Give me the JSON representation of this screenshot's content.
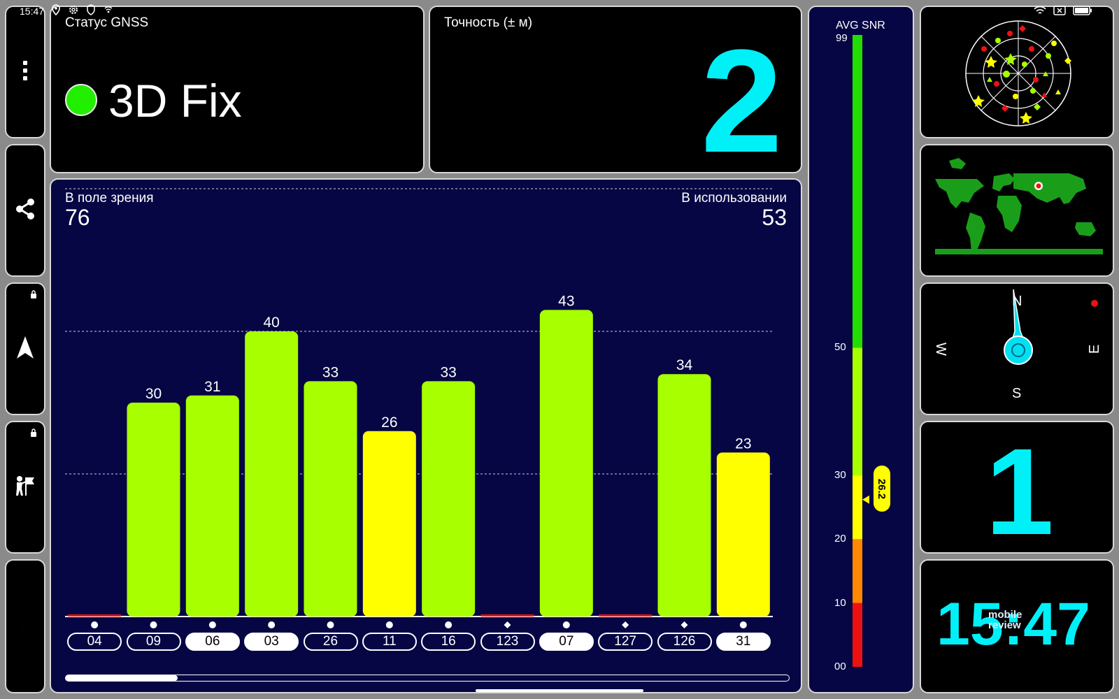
{
  "status_bar": {
    "time": "15:47"
  },
  "sidebar": [
    {
      "name": "menu-button",
      "icon": "more-vertical-icon"
    },
    {
      "name": "share-button",
      "icon": "share-icon"
    },
    {
      "name": "navigate-button",
      "icon": "navigation-arrow-icon",
      "locked": true
    },
    {
      "name": "map-mode-button",
      "icon": "person-flag-icon",
      "locked": true
    },
    {
      "name": "night-mode-button",
      "icon": "moon-icon"
    }
  ],
  "gnss_status": {
    "title": "Статус GNSS",
    "fix": "3D Fix",
    "fix_color": "#22ee00"
  },
  "accuracy": {
    "title": "Точность (± м)",
    "value": "2"
  },
  "satellites": {
    "in_view_label": "В поле зрения",
    "in_view": "76",
    "in_use_label": "В использовании",
    "in_use": "53"
  },
  "chart_data": {
    "type": "bar",
    "categories": [
      "04",
      "09",
      "06",
      "03",
      "26",
      "11",
      "16",
      "123",
      "07",
      "127",
      "126",
      "31"
    ],
    "values": [
      0,
      30,
      31,
      40,
      33,
      26,
      33,
      0,
      43,
      0,
      34,
      23
    ],
    "value_labels": [
      "",
      "30",
      "31",
      "40",
      "33",
      "26",
      "33",
      "",
      "43",
      "",
      "34",
      "23"
    ],
    "marker_shape": [
      "circle",
      "circle",
      "circle",
      "circle",
      "circle",
      "circle",
      "circle",
      "diamond",
      "circle",
      "diamond",
      "diamond",
      "circle"
    ],
    "used_in_fix": [
      false,
      false,
      true,
      true,
      false,
      false,
      false,
      false,
      true,
      false,
      false,
      true
    ],
    "ylim": [
      0,
      60
    ],
    "gridlines": [
      20,
      40,
      60
    ],
    "colors": {
      "strong": "#a8ff00",
      "medium": "#ffff00",
      "none": "#ee1111"
    }
  },
  "snr_meter": {
    "title": "AVG SNR",
    "max_label": "99",
    "ticks": [
      "50",
      "30",
      "20",
      "10",
      "00"
    ],
    "value": "26.2",
    "value_num": 26.2,
    "colors": {
      "high": "#22dd00",
      "good": "#a8ff00",
      "fair": "#ffff00",
      "low": "#ff8800",
      "bad": "#ee1111"
    }
  },
  "compass": {
    "n": "N",
    "s": "S",
    "w": "W",
    "e": "E"
  },
  "sat_count_widget": {
    "value": "1"
  },
  "clock_widget": {
    "time": "15:47",
    "watermark": "mobile review"
  }
}
